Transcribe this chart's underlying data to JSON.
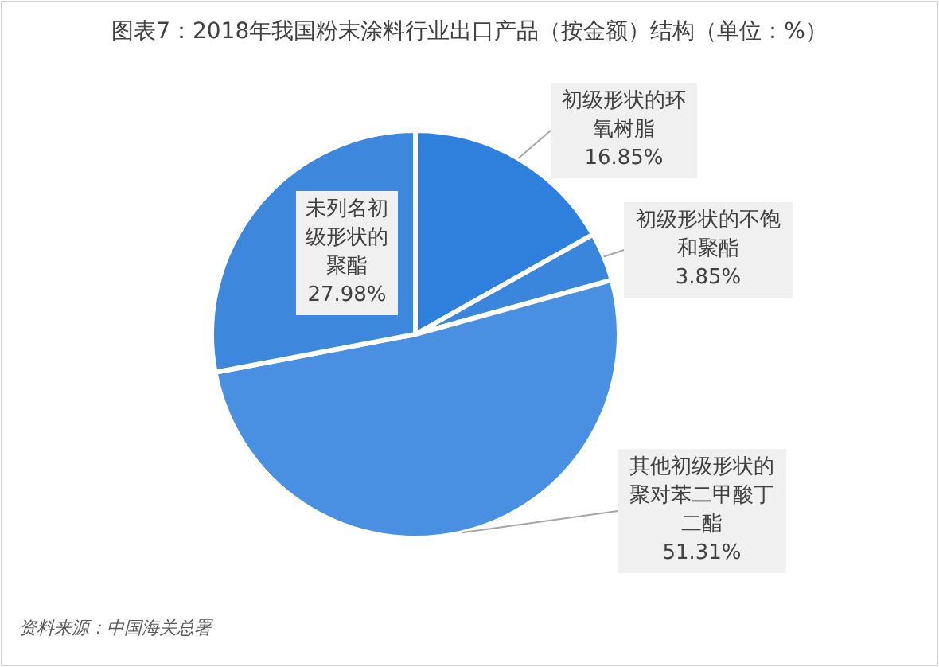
{
  "chart_data": {
    "type": "pie",
    "title": "图表7：2018年我国粉末涂料行业出口产品（按金额）结构（单位：%）",
    "categories": [
      "初级形状的环氧树脂",
      "初级形状的不饱和聚酯",
      "其他初级形状的聚对苯二甲酸丁二酯",
      "未列名初级形状的聚酯"
    ],
    "values": [
      16.85,
      3.85,
      51.31,
      27.98
    ],
    "colors": [
      "#2f7fdc",
      "#3a86dc",
      "#4a90e2",
      "#3d88dd"
    ],
    "value_labels": [
      "16.85%",
      "3.85%",
      "51.31%",
      "27.98%"
    ],
    "annotations": [
      "资料来源：中国海关总署"
    ]
  }
}
